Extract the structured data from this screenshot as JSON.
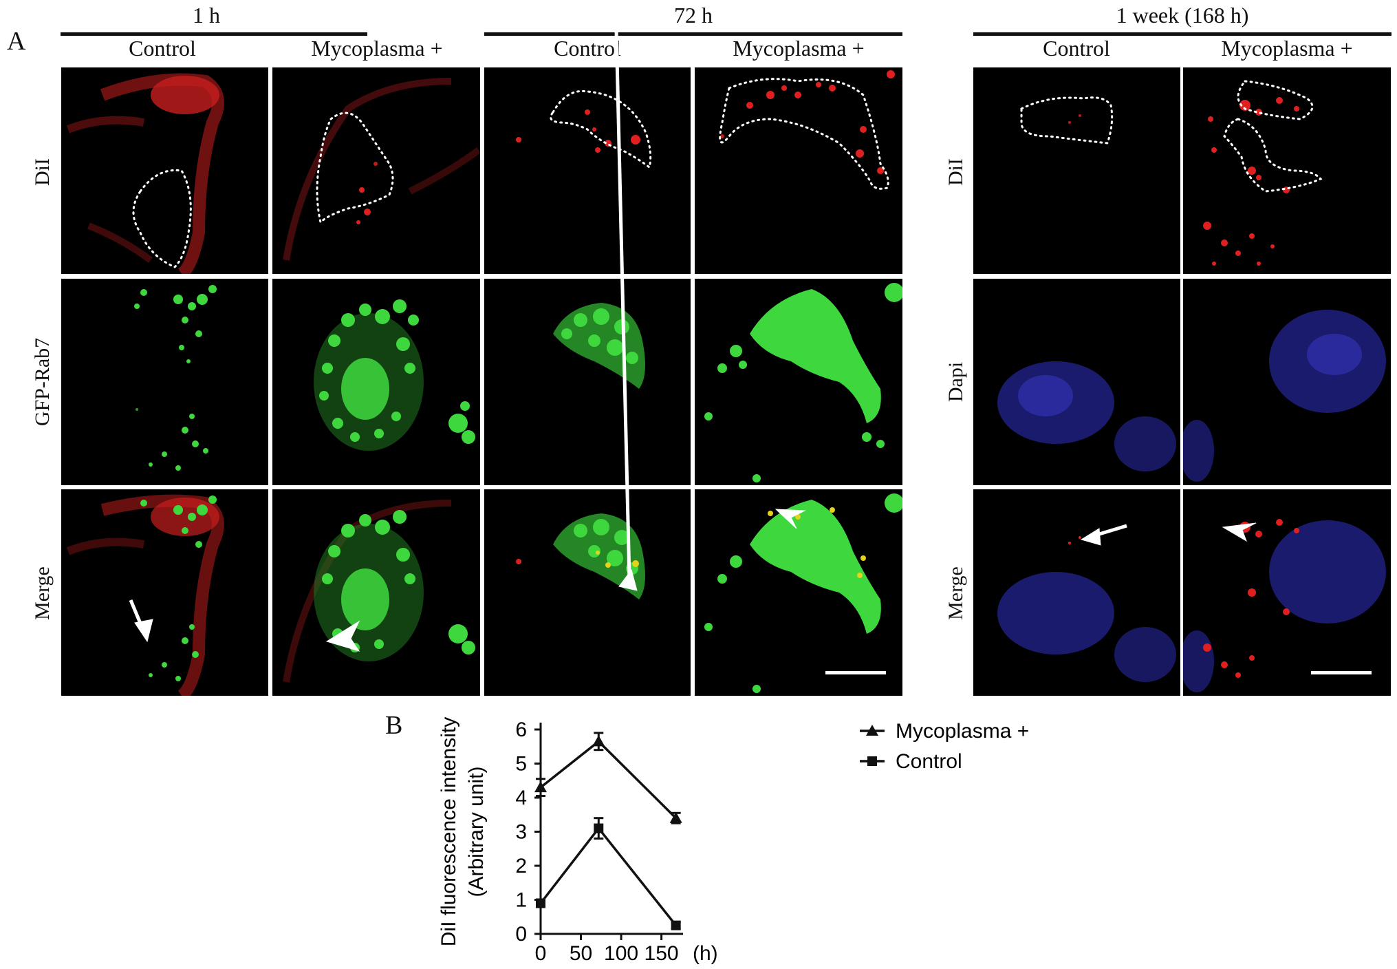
{
  "panel_a": {
    "letter": "A",
    "groups": [
      {
        "label": "1 h",
        "sub": [
          "Control",
          "Mycoplasma +"
        ]
      },
      {
        "label": "72 h",
        "sub": [
          "Control",
          "Mycoplasma +"
        ]
      },
      {
        "label": "1 week  (168 h)",
        "sub": [
          "Control",
          "Mycoplasma +"
        ]
      }
    ],
    "left_rows": [
      "DiI",
      "GFP-Rab7",
      "Merge"
    ],
    "right_rows": [
      "DiI",
      "Dapi",
      "Merge"
    ],
    "colors": {
      "dil": "#e02020",
      "gfp": "#3ed83e",
      "dapi": "#3a3acc",
      "coloc": "#e6d21a"
    }
  },
  "panel_b": {
    "letter": "B",
    "chart_data": {
      "type": "line",
      "x": [
        0,
        72,
        168
      ],
      "series": [
        {
          "name": "Mycoplasma +",
          "values": [
            4.3,
            5.65,
            3.4
          ],
          "errors": [
            0.25,
            0.25,
            0.15
          ],
          "marker": "triangle"
        },
        {
          "name": "Control",
          "values": [
            0.9,
            3.1,
            0.25
          ],
          "errors": [
            0.1,
            0.3,
            0.1
          ],
          "marker": "square"
        }
      ],
      "xlabel": "(h)",
      "ylabel": [
        "DiI fluorescence intensity",
        "(Arbitrary unit)"
      ],
      "xlim": [
        0,
        170
      ],
      "ylim": [
        0,
        6
      ],
      "xticks": [
        0,
        50,
        100,
        150
      ],
      "yticks": [
        0,
        1,
        2,
        3,
        4,
        5,
        6
      ],
      "legend_position": "right",
      "grid": false
    }
  }
}
